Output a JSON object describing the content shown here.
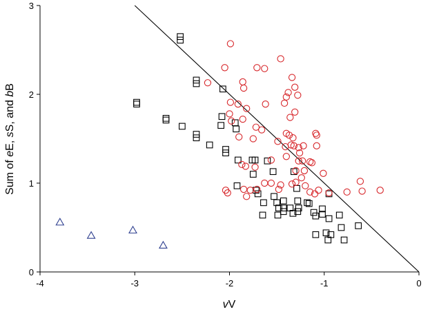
{
  "chart_data": {
    "type": "scatter",
    "title": "",
    "xlabel": {
      "italic": "v",
      "rest": "V"
    },
    "ylabel": {
      "parts": [
        "Sum of ",
        "e",
        "E, ",
        "s",
        "S, and ",
        "b",
        "B"
      ],
      "italic_indices": [
        1,
        3,
        5
      ]
    },
    "xlim": [
      -4,
      0
    ],
    "ylim": [
      0,
      3
    ],
    "xticks": [
      -4,
      -3,
      -2,
      -1,
      0
    ],
    "yticks": [
      0,
      1,
      2,
      3
    ],
    "xtick_labels": [
      "-4",
      "-3",
      "-2",
      "-1",
      "0"
    ],
    "ytick_labels": [
      "0",
      "1",
      "2",
      "3"
    ],
    "grid": false,
    "legend": "none",
    "reference_line": {
      "x1": -3.0,
      "y1": 3.0,
      "x2": 0.0,
      "y2": 0.0,
      "color": "#000000"
    },
    "series": [
      {
        "marker": "triangle",
        "color": "#2e3f8f",
        "points": [
          [
            -3.79,
            0.56
          ],
          [
            -3.46,
            0.41
          ],
          [
            -3.02,
            0.47
          ],
          [
            -2.7,
            0.3
          ]
        ]
      },
      {
        "marker": "square",
        "color": "#000000",
        "points": [
          [
            -2.52,
            2.65
          ],
          [
            -2.52,
            2.61
          ],
          [
            -2.35,
            2.16
          ],
          [
            -2.35,
            2.12
          ],
          [
            -2.07,
            2.06
          ],
          [
            -2.98,
            1.91
          ],
          [
            -2.98,
            1.89
          ],
          [
            -2.67,
            1.73
          ],
          [
            -2.67,
            1.71
          ],
          [
            -2.5,
            1.64
          ],
          [
            -2.35,
            1.55
          ],
          [
            -2.35,
            1.51
          ],
          [
            -2.08,
            1.75
          ],
          [
            -2.09,
            1.65
          ],
          [
            -1.94,
            1.68
          ],
          [
            -1.93,
            1.61
          ],
          [
            -2.21,
            1.43
          ],
          [
            -2.04,
            1.38
          ],
          [
            -2.04,
            1.34
          ],
          [
            -1.91,
            1.26
          ],
          [
            -1.76,
            1.26
          ],
          [
            -1.73,
            1.26
          ],
          [
            -1.6,
            1.25
          ],
          [
            -1.75,
            1.1
          ],
          [
            -1.54,
            1.13
          ],
          [
            -1.32,
            1.13
          ],
          [
            -1.92,
            0.97
          ],
          [
            -1.72,
            0.92
          ],
          [
            -1.7,
            0.88
          ],
          [
            -1.64,
            0.78
          ],
          [
            -1.65,
            0.64
          ],
          [
            -1.53,
            0.85
          ],
          [
            -1.5,
            0.78
          ],
          [
            -1.48,
            0.72
          ],
          [
            -1.49,
            0.64
          ],
          [
            -1.43,
            0.8
          ],
          [
            -1.43,
            0.72
          ],
          [
            -1.43,
            0.68
          ],
          [
            -1.36,
            0.72
          ],
          [
            -1.33,
            0.66
          ],
          [
            -1.28,
            0.8
          ],
          [
            -1.27,
            0.72
          ],
          [
            -1.28,
            0.68
          ],
          [
            -1.29,
            0.94
          ],
          [
            -1.18,
            0.78
          ],
          [
            -1.16,
            0.77
          ],
          [
            -1.11,
            0.67
          ],
          [
            -1.09,
            0.63
          ],
          [
            -1.02,
            0.71
          ],
          [
            -1.02,
            0.65
          ],
          [
            -0.95,
            0.88
          ],
          [
            -0.95,
            0.6
          ],
          [
            -0.98,
            0.44
          ],
          [
            -0.96,
            0.36
          ],
          [
            -1.09,
            0.42
          ],
          [
            -0.93,
            0.42
          ],
          [
            -0.84,
            0.64
          ],
          [
            -0.82,
            0.5
          ],
          [
            -0.79,
            0.36
          ],
          [
            -0.64,
            0.52
          ]
        ]
      },
      {
        "marker": "circle",
        "color": "#d7262a",
        "points": [
          [
            -1.99,
            2.57
          ],
          [
            -1.46,
            2.4
          ],
          [
            -2.05,
            2.3
          ],
          [
            -1.71,
            2.3
          ],
          [
            -1.63,
            2.29
          ],
          [
            -1.34,
            2.19
          ],
          [
            -1.86,
            2.14
          ],
          [
            -1.85,
            2.07
          ],
          [
            -1.31,
            2.08
          ],
          [
            -1.38,
            2.02
          ],
          [
            -1.4,
            1.97
          ],
          [
            -1.28,
            1.99
          ],
          [
            -1.42,
            1.9
          ],
          [
            -1.62,
            1.89
          ],
          [
            -2.23,
            2.13
          ],
          [
            -1.99,
            1.91
          ],
          [
            -1.91,
            1.89
          ],
          [
            -2.0,
            1.78
          ],
          [
            -1.82,
            1.84
          ],
          [
            -1.31,
            1.8
          ],
          [
            -1.36,
            1.74
          ],
          [
            -1.86,
            1.72
          ],
          [
            -1.98,
            1.7
          ],
          [
            -1.72,
            1.63
          ],
          [
            -1.66,
            1.6
          ],
          [
            -1.4,
            1.56
          ],
          [
            -1.37,
            1.54
          ],
          [
            -1.33,
            1.51
          ],
          [
            -1.49,
            1.47
          ],
          [
            -1.41,
            1.41
          ],
          [
            -1.35,
            1.43
          ],
          [
            -1.32,
            1.42
          ],
          [
            -1.27,
            1.4
          ],
          [
            -1.22,
            1.42
          ],
          [
            -1.26,
            1.34
          ],
          [
            -1.09,
            1.56
          ],
          [
            -1.08,
            1.54
          ],
          [
            -1.08,
            1.42
          ],
          [
            -1.56,
            1.26
          ],
          [
            -1.4,
            1.3
          ],
          [
            -1.27,
            1.25
          ],
          [
            -1.23,
            1.25
          ],
          [
            -1.15,
            1.24
          ],
          [
            -1.13,
            1.23
          ],
          [
            -1.83,
            1.19
          ],
          [
            -1.73,
            1.18
          ],
          [
            -1.3,
            1.14
          ],
          [
            -1.21,
            1.14
          ],
          [
            -1.01,
            1.11
          ],
          [
            -1.63,
            1.0
          ],
          [
            -1.56,
            1.0
          ],
          [
            -1.46,
            0.98
          ],
          [
            -1.3,
            1.01
          ],
          [
            -1.24,
            1.06
          ],
          [
            -1.2,
            0.97
          ],
          [
            -2.04,
            0.92
          ],
          [
            -2.02,
            0.89
          ],
          [
            -1.85,
            0.93
          ],
          [
            -1.82,
            0.85
          ],
          [
            -1.78,
            0.92
          ],
          [
            -1.71,
            0.93
          ],
          [
            -1.48,
            0.93
          ],
          [
            -1.34,
            0.99
          ],
          [
            -1.15,
            0.9
          ],
          [
            -1.1,
            0.88
          ],
          [
            -1.06,
            0.92
          ],
          [
            -0.95,
            0.89
          ],
          [
            -0.76,
            0.9
          ],
          [
            -0.62,
            1.02
          ],
          [
            -0.6,
            0.91
          ],
          [
            -0.41,
            0.92
          ],
          [
            -1.75,
            1.5
          ],
          [
            -1.9,
            1.52
          ],
          [
            -1.87,
            1.21
          ]
        ]
      }
    ]
  }
}
